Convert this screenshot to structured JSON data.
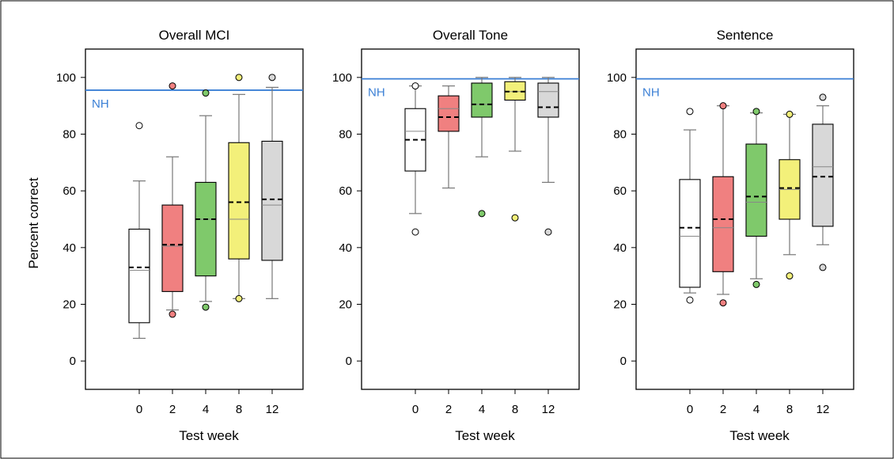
{
  "chart_data": [
    {
      "type": "box",
      "title": "Overall MCI",
      "xlabel": "Test week",
      "ylabel": "Percent correct",
      "ylim": [
        -10,
        110
      ],
      "yticks": [
        0,
        20,
        40,
        60,
        80,
        100
      ],
      "categories": [
        "0",
        "2",
        "4",
        "8",
        "12"
      ],
      "reference_line": {
        "label": "NH",
        "value": 95.5,
        "color": "#3a7fd5"
      },
      "boxes": [
        {
          "category": "0",
          "color": "#ffffff",
          "whisker_low": 8,
          "q1": 13.5,
          "median": 32,
          "mean": 33,
          "q3": 46.5,
          "whisker_high": 63.5,
          "outliers": [
            83
          ]
        },
        {
          "category": "2",
          "color": "#f08080",
          "whisker_low": 18,
          "q1": 24.5,
          "median": 40.5,
          "mean": 41,
          "q3": 55,
          "whisker_high": 72,
          "outliers": [
            97,
            16.5
          ]
        },
        {
          "category": "4",
          "color": "#7fc96b",
          "whisker_low": 21,
          "q1": 30,
          "median": 50,
          "mean": 50,
          "q3": 63,
          "whisker_high": 86.5,
          "outliers": [
            94.5,
            19
          ]
        },
        {
          "category": "8",
          "color": "#f3f07a",
          "whisker_low": 22,
          "q1": 36,
          "median": 50,
          "mean": 56,
          "q3": 77,
          "whisker_high": 94,
          "outliers": [
            100,
            22
          ]
        },
        {
          "category": "12",
          "color": "#d8d8d8",
          "whisker_low": 22,
          "q1": 35.5,
          "median": 55,
          "mean": 57,
          "q3": 77.5,
          "whisker_high": 96.5,
          "outliers": [
            100
          ]
        }
      ]
    },
    {
      "type": "box",
      "title": "Overall Tone",
      "xlabel": "Test week",
      "ylabel": "",
      "ylim": [
        -10,
        110
      ],
      "yticks": [
        0,
        20,
        40,
        60,
        80,
        100
      ],
      "categories": [
        "0",
        "2",
        "4",
        "8",
        "12"
      ],
      "reference_line": {
        "label": "NH",
        "value": 99.5,
        "color": "#3a7fd5"
      },
      "boxes": [
        {
          "category": "0",
          "color": "#ffffff",
          "whisker_low": 52,
          "q1": 67,
          "median": 81,
          "mean": 78,
          "q3": 89,
          "whisker_high": 97,
          "outliers": [
            97,
            45.5
          ]
        },
        {
          "category": "2",
          "color": "#f08080",
          "whisker_low": 61,
          "q1": 81,
          "median": 89,
          "mean": 86,
          "q3": 93.5,
          "whisker_high": 97,
          "outliers": []
        },
        {
          "category": "4",
          "color": "#7fc96b",
          "whisker_low": 72,
          "q1": 86,
          "median": 90.5,
          "mean": 90.5,
          "q3": 98,
          "whisker_high": 100,
          "outliers": [
            52
          ]
        },
        {
          "category": "8",
          "color": "#f3f07a",
          "whisker_low": 74,
          "q1": 92,
          "median": 95,
          "mean": 95,
          "q3": 98.5,
          "whisker_high": 100,
          "outliers": [
            50.5
          ]
        },
        {
          "category": "12",
          "color": "#d8d8d8",
          "whisker_low": 63,
          "q1": 86,
          "median": 95,
          "mean": 89.5,
          "q3": 98,
          "whisker_high": 100,
          "outliers": [
            45.5
          ]
        }
      ]
    },
    {
      "type": "box",
      "title": "Sentence",
      "xlabel": "Test week",
      "ylabel": "",
      "ylim": [
        -10,
        110
      ],
      "yticks": [
        0,
        20,
        40,
        60,
        80,
        100
      ],
      "categories": [
        "0",
        "2",
        "4",
        "8",
        "12"
      ],
      "reference_line": {
        "label": "NH",
        "value": 99.5,
        "color": "#3a7fd5"
      },
      "boxes": [
        {
          "category": "0",
          "color": "#ffffff",
          "whisker_low": 24,
          "q1": 26,
          "median": 44,
          "mean": 47,
          "q3": 64,
          "whisker_high": 81.5,
          "outliers": [
            88,
            21.5
          ]
        },
        {
          "category": "2",
          "color": "#f08080",
          "whisker_low": 23.5,
          "q1": 31.5,
          "median": 47,
          "mean": 50,
          "q3": 65,
          "whisker_high": 90,
          "outliers": [
            90,
            20.5
          ]
        },
        {
          "category": "4",
          "color": "#7fc96b",
          "whisker_low": 29,
          "q1": 44,
          "median": 56,
          "mean": 58,
          "q3": 76.5,
          "whisker_high": 87.5,
          "outliers": [
            88,
            27
          ]
        },
        {
          "category": "8",
          "color": "#f3f07a",
          "whisker_low": 37.5,
          "q1": 50,
          "median": 60.5,
          "mean": 61,
          "q3": 71,
          "whisker_high": 87,
          "outliers": [
            87,
            30
          ]
        },
        {
          "category": "12",
          "color": "#d8d8d8",
          "whisker_low": 41,
          "q1": 47.5,
          "median": 68.5,
          "mean": 65,
          "q3": 83.5,
          "whisker_high": 90,
          "outliers": [
            93,
            33
          ]
        }
      ]
    }
  ]
}
